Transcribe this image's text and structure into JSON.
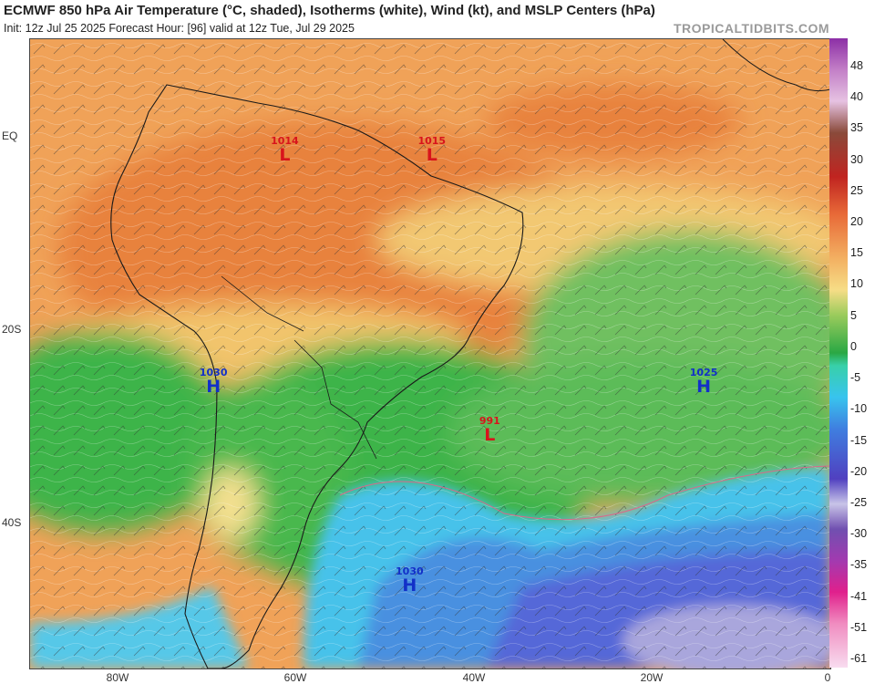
{
  "header": {
    "title": "ECMWF 850 hPa Air Temperature (°C, shaded), Isotherms (white), Wind (kt), and MSLP Centers (hPa)",
    "subtitle": "Init: 12z Jul 25 2025   Forecast Hour: [96]   valid at 12z Tue, Jul 29 2025",
    "brand": "TROPICALTIDBITS.COM"
  },
  "axes": {
    "lat_labels": [
      "EQ",
      "20S",
      "40S"
    ],
    "lon_labels": [
      "80W",
      "60W",
      "40W",
      "20W",
      "0"
    ]
  },
  "colorbar": {
    "labels": [
      "48",
      "40",
      "35",
      "30",
      "25",
      "20",
      "15",
      "10",
      "5",
      "0",
      "-5",
      "-10",
      "-15",
      "-20",
      "-25",
      "-30",
      "-35",
      "-41",
      "-51",
      "-61"
    ]
  },
  "pressure_centers": [
    {
      "type": "L",
      "value": "1014",
      "lon": -61,
      "lat": 0
    },
    {
      "type": "L",
      "value": "1015",
      "lon": -44.5,
      "lat": 0
    },
    {
      "type": "H",
      "value": "1030",
      "lon": -69,
      "lat": -24
    },
    {
      "type": "L",
      "value": "991",
      "lon": -38,
      "lat": -29
    },
    {
      "type": "H",
      "value": "1025",
      "lon": -14,
      "lat": -24
    },
    {
      "type": "H",
      "value": "1030",
      "lon": -47,
      "lat": -44.5
    }
  ],
  "colors": {
    "warm": "#f09a52",
    "yellow": "#f4d57a",
    "green": "#3cb44a",
    "cyan": "#3fc6e6",
    "blue": "#5a7de0",
    "purple": "#8f8ad8",
    "low": "#d8141c",
    "high": "#1230c8"
  }
}
